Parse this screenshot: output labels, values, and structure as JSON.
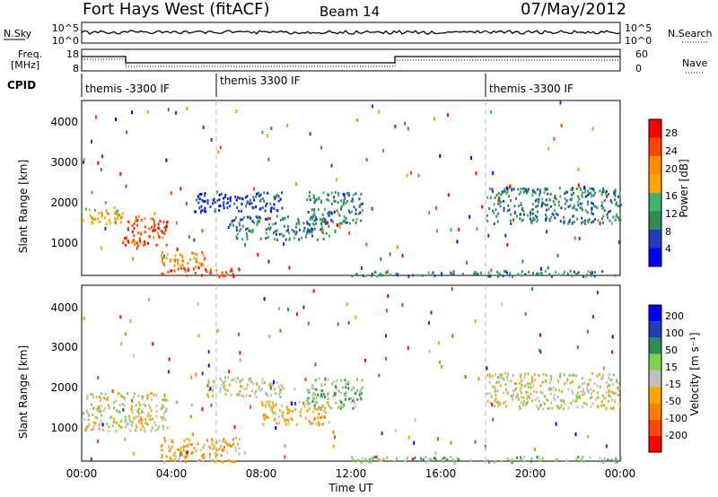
{
  "header": {
    "title": "Fort Hays West (fitACF)",
    "beam": "Beam 14",
    "date": "07/May/2012"
  },
  "noise_panel": {
    "left_label": "N.Sky",
    "left_ticks": [
      "10^5",
      "10^0"
    ],
    "right_ticks": [
      "10^5",
      "10^0"
    ],
    "right_label": "N.Search"
  },
  "freq_panel": {
    "left_label_1": "Freq.",
    "left_label_2": "[MHz]",
    "left_ticks": [
      "18",
      "8"
    ],
    "right_ticks": [
      "60",
      "0"
    ],
    "right_label": "Nave"
  },
  "cpid": {
    "label": "CPID",
    "segments": [
      {
        "start_hour": 0,
        "name": "themis -3300 IF"
      },
      {
        "start_hour": 6,
        "name": "themis 3300 IF"
      },
      {
        "start_hour": 18,
        "name": "themis -3300 IF"
      }
    ]
  },
  "colors": {
    "power_scale": [
      "#0000ff",
      "#1e3cbe",
      "#2e8b57",
      "#3cb371",
      "#ffa500",
      "#ff8c00",
      "#ff4500",
      "#ff0000"
    ],
    "velocity_scale": [
      "#ff0000",
      "#ff4500",
      "#ff7f00",
      "#ffa500",
      "#c0c0c0",
      "#7fd04b",
      "#2e8b57",
      "#1e3cbe",
      "#0000ff"
    ]
  },
  "chart_data": [
    {
      "type": "heatmap",
      "quantity": "Power",
      "ylabel": "Slant Range [km]",
      "yticks": [
        1000,
        2000,
        3000,
        4000
      ],
      "ylim": [
        180,
        4550
      ],
      "xlim": [
        0,
        24
      ],
      "colorbar": {
        "label": "Power [dB]",
        "ticks": [
          "4",
          "8",
          "12",
          "16",
          "20",
          "24",
          "28"
        ]
      },
      "regions": [
        {
          "t0": 0.0,
          "t1": 1.8,
          "r0": 1450,
          "r1": 1900,
          "level": 4
        },
        {
          "t0": 1.8,
          "t1": 3.8,
          "r0": 950,
          "r1": 1700,
          "level": 6
        },
        {
          "t0": 3.5,
          "t1": 5.5,
          "r0": 420,
          "r1": 800,
          "level": 5
        },
        {
          "t0": 3.5,
          "t1": 7.0,
          "r0": 180,
          "r1": 400,
          "level": 6
        },
        {
          "t0": 5.0,
          "t1": 9.0,
          "r0": 1800,
          "r1": 2300,
          "level": 1
        },
        {
          "t0": 6.5,
          "t1": 11.0,
          "r0": 1100,
          "r1": 1700,
          "level": 2
        },
        {
          "t0": 10.0,
          "t1": 12.5,
          "r0": 1500,
          "r1": 2300,
          "level": 2
        },
        {
          "t0": 12.0,
          "t1": 24.0,
          "r0": 180,
          "r1": 320,
          "level": 2
        },
        {
          "t0": 18.0,
          "t1": 24.0,
          "r0": 1500,
          "r1": 2400,
          "level": 2
        }
      ]
    },
    {
      "type": "heatmap",
      "quantity": "Velocity",
      "ylabel": "Slant Range [km]",
      "xlabel": "Time UT",
      "yticks": [
        1000,
        2000,
        3000,
        4000
      ],
      "ylim": [
        180,
        4550
      ],
      "xlim": [
        0,
        24
      ],
      "xticks": [
        "00:00",
        "04:00",
        "08:00",
        "12:00",
        "16:00",
        "20:00",
        "00:00"
      ],
      "colorbar": {
        "label": "Velocity [m s⁻¹]",
        "ticks": [
          "-200",
          "-100",
          "-50",
          "-15",
          "15",
          "50",
          "100",
          "200"
        ]
      },
      "regions": [
        {
          "t0": 0.0,
          "t1": 3.8,
          "r0": 950,
          "r1": 1900,
          "level": 4
        },
        {
          "t0": 3.5,
          "t1": 7.0,
          "r0": 180,
          "r1": 800,
          "level": 3
        },
        {
          "t0": 5.5,
          "t1": 9.0,
          "r0": 1800,
          "r1": 2300,
          "level": 4
        },
        {
          "t0": 8.0,
          "t1": 11.0,
          "r0": 1100,
          "r1": 1700,
          "level": 3
        },
        {
          "t0": 10.0,
          "t1": 12.5,
          "r0": 1500,
          "r1": 2300,
          "level": 5
        },
        {
          "t0": 12.0,
          "t1": 24.0,
          "r0": 180,
          "r1": 320,
          "level": 5
        },
        {
          "t0": 18.0,
          "t1": 24.0,
          "r0": 1500,
          "r1": 2400,
          "level": 4
        }
      ]
    }
  ]
}
